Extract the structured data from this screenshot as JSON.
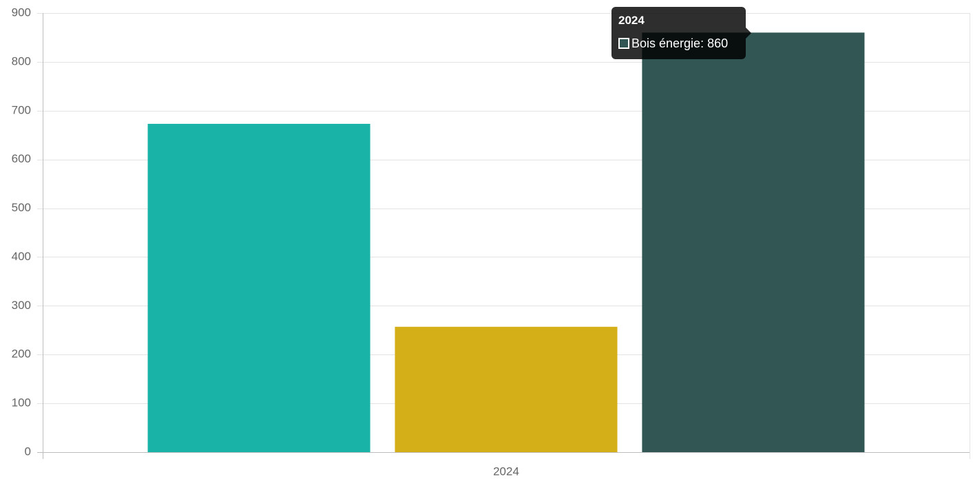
{
  "chart_data": {
    "type": "bar",
    "categories": [
      "2024"
    ],
    "series": [
      {
        "values": [
          673
        ],
        "color": "#1ab3a8"
      },
      {
        "values": [
          257
        ],
        "color": "#d4af17"
      },
      {
        "name": "Bois énergie",
        "values": [
          860
        ],
        "color": "#325653"
      }
    ],
    "ylim": [
      0,
      900
    ],
    "yticks": [
      0,
      100,
      200,
      300,
      400,
      500,
      600,
      700,
      800,
      900
    ],
    "grid": true,
    "title": "",
    "xlabel": "",
    "ylabel": ""
  },
  "tooltip": {
    "title": "2024",
    "label": "Bois énergie: 860",
    "swatch_color": "#325653"
  }
}
